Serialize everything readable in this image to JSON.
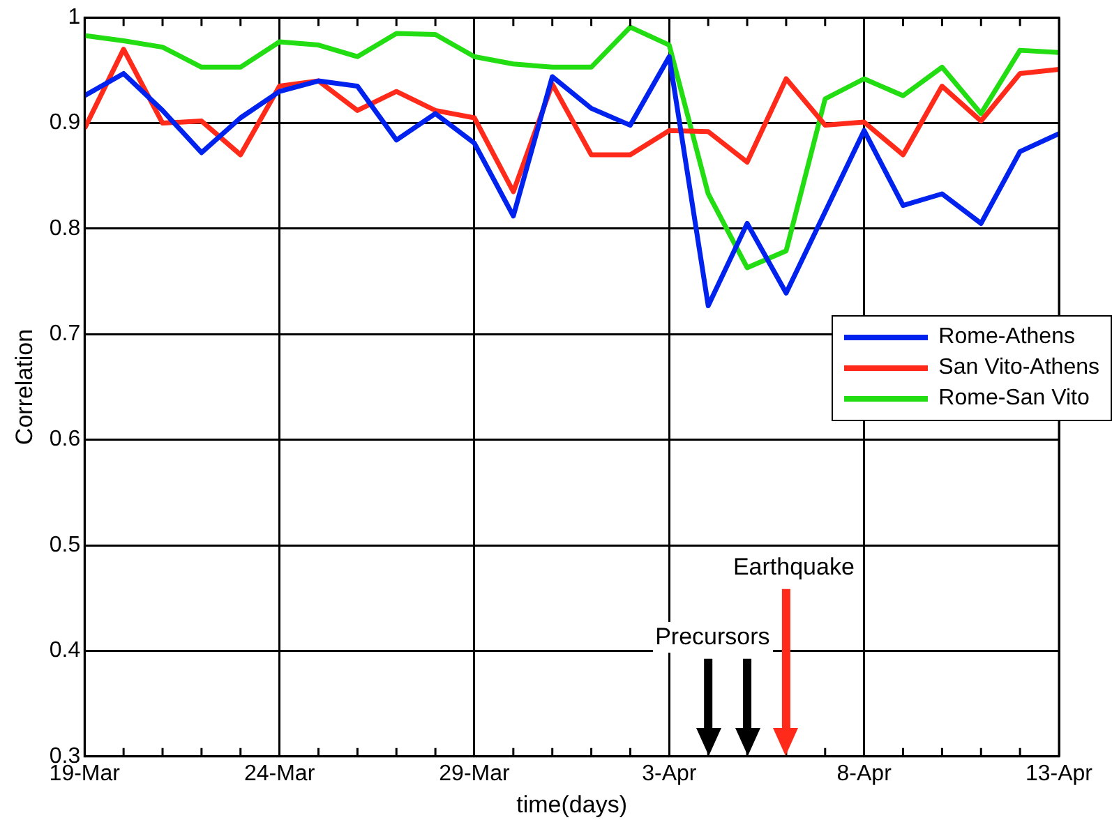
{
  "chart_data": {
    "type": "line",
    "xlabel": "time(days)",
    "ylabel": "Correlation",
    "x": [
      "--03-19",
      "--03-20",
      "--03-21",
      "--03-22",
      "--03-23",
      "--03-24",
      "--03-25",
      "--03-26",
      "--03-27",
      "--03-28",
      "--03-29",
      "--03-30",
      "--03-31",
      "--04-01",
      "--04-02",
      "--04-03",
      "--04-04",
      "--04-05",
      "--04-06",
      "--04-07",
      "--04-08",
      "--04-09",
      "--04-10",
      "--04-11",
      "--04-12",
      "--04-13"
    ],
    "series": [
      {
        "name": "Rome-Athens",
        "color": "#0022ee",
        "values": [
          0.926,
          0.947,
          0.912,
          0.872,
          0.905,
          0.93,
          0.94,
          0.935,
          0.884,
          0.909,
          0.881,
          0.812,
          0.944,
          0.914,
          0.898,
          0.963,
          0.727,
          0.805,
          0.739,
          0.816,
          0.893,
          0.822,
          0.833,
          0.805,
          0.873,
          0.89
        ]
      },
      {
        "name": "San Vito-Athens",
        "color": "#ff2a1a",
        "values": [
          0.895,
          0.97,
          0.9,
          0.902,
          0.87,
          0.935,
          0.94,
          0.912,
          0.93,
          0.912,
          0.905,
          0.835,
          0.937,
          0.87,
          0.87,
          0.893,
          0.892,
          0.863,
          0.942,
          0.898,
          0.901,
          0.87,
          0.935,
          0.902,
          0.947,
          0.951
        ]
      },
      {
        "name": "Rome-San Vito",
        "color": "#22dd11",
        "values": [
          0.983,
          0.978,
          0.972,
          0.953,
          0.953,
          0.977,
          0.974,
          0.963,
          0.985,
          0.984,
          0.963,
          0.956,
          0.953,
          0.953,
          0.991,
          0.974,
          0.833,
          0.763,
          0.779,
          0.923,
          0.942,
          0.926,
          0.953,
          0.909,
          0.969,
          0.967
        ]
      }
    ],
    "xlim": [
      "--03-19",
      "--04-13"
    ],
    "xticks": [
      {
        "value": "--03-19",
        "label": "19-Mar"
      },
      {
        "value": "--03-20",
        "label": null
      },
      {
        "value": "--03-21",
        "label": null
      },
      {
        "value": "--03-22",
        "label": null
      },
      {
        "value": "--03-23",
        "label": null
      },
      {
        "value": "--03-24",
        "label": "24-Mar"
      },
      {
        "value": "--03-25",
        "label": null
      },
      {
        "value": "--03-26",
        "label": null
      },
      {
        "value": "--03-27",
        "label": null
      },
      {
        "value": "--03-28",
        "label": null
      },
      {
        "value": "--03-29",
        "label": "29-Mar"
      },
      {
        "value": "--03-30",
        "label": null
      },
      {
        "value": "--03-31",
        "label": null
      },
      {
        "value": "--04-01",
        "label": null
      },
      {
        "value": "--04-02",
        "label": null
      },
      {
        "value": "--04-03",
        "label": "3-Apr"
      },
      {
        "value": "--04-04",
        "label": null
      },
      {
        "value": "--04-05",
        "label": null
      },
      {
        "value": "--04-06",
        "label": null
      },
      {
        "value": "--04-07",
        "label": null
      },
      {
        "value": "--04-08",
        "label": "8-Apr"
      },
      {
        "value": "--04-09",
        "label": null
      },
      {
        "value": "--04-10",
        "label": null
      },
      {
        "value": "--04-11",
        "label": null
      },
      {
        "value": "--04-12",
        "label": null
      },
      {
        "value": "--04-13",
        "label": "13-Apr"
      }
    ],
    "ylim": [
      0.3,
      1
    ],
    "yticks": [
      0.3,
      0.4,
      0.5,
      0.6,
      0.7,
      0.8,
      0.9,
      1
    ],
    "grid": true,
    "legend": "right",
    "marker": "none",
    "line_style": "solid",
    "ref_lines": [
      {
        "axis": "x",
        "value": "--04-04",
        "label": "Precursors",
        "color": "#000000"
      },
      {
        "axis": "x",
        "value": "--04-05",
        "label": null,
        "color": "#000000"
      },
      {
        "axis": "x",
        "value": "--04-06",
        "label": "Earthquake",
        "color": "#ff2a1a"
      }
    ]
  }
}
